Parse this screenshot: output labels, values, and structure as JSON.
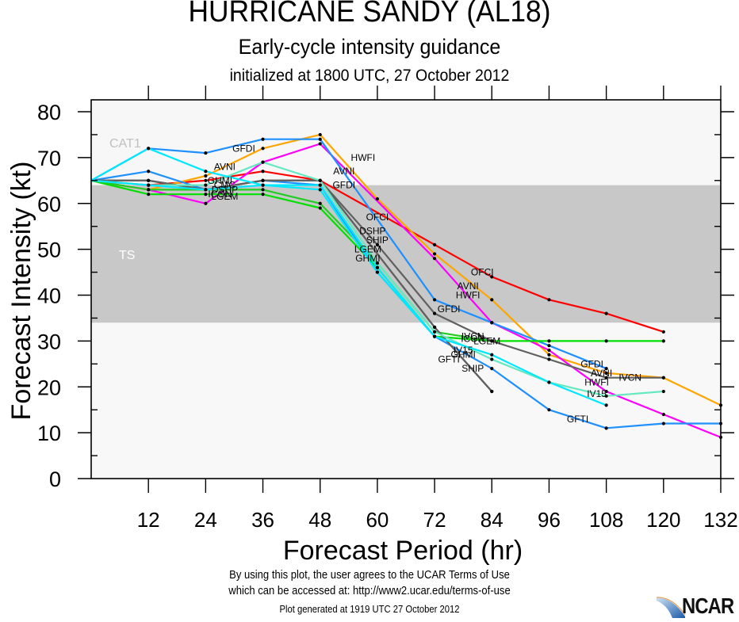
{
  "header": {
    "title": "HURRICANE SANDY (AL18)",
    "subtitle": "Early-cycle intensity guidance",
    "initialized": "initialized at 1800 UTC, 27 October 2012"
  },
  "footer": {
    "terms_line1": "By using this plot, the user agrees to the UCAR Terms of Use",
    "terms_line2": "which can be accessed at: http://www2.ucar.edu/terms-of-use",
    "generated": "Plot generated at 1919 UTC   27 October 2012",
    "logo_text": "NCAR"
  },
  "chart_data": {
    "type": "line",
    "title": "HURRICANE SANDY (AL18)",
    "xlabel": "Forecast Period (hr)",
    "ylabel": "Forecast Intensity (kt)",
    "xlim": [
      0,
      132
    ],
    "ylim": [
      0,
      80
    ],
    "xticks": [
      12,
      24,
      36,
      48,
      60,
      72,
      84,
      96,
      108,
      120,
      132
    ],
    "yticks": [
      0,
      10,
      20,
      30,
      40,
      50,
      60,
      70,
      80
    ],
    "bands": [
      {
        "label": "TS",
        "from": 34,
        "to": 64,
        "color": "#c8c8c8"
      },
      {
        "label": "CAT1",
        "from": 64,
        "to": 83,
        "color": "#f7f7f7"
      }
    ],
    "series": [
      {
        "name": "OFCI",
        "color": "#ff0000",
        "x": [
          0,
          12,
          24,
          36,
          48,
          72,
          84,
          96,
          108,
          120
        ],
        "y": [
          65,
          64,
          65,
          67,
          65,
          51,
          44,
          39,
          36,
          32
        ],
        "labels": [
          {
            "x": 60,
            "y": 57
          },
          {
            "x": 82,
            "y": 45
          }
        ]
      },
      {
        "name": "AVNI",
        "color": "#ffa500",
        "x": [
          0,
          12,
          24,
          36,
          48,
          60,
          72,
          84,
          96,
          108,
          120,
          132
        ],
        "y": [
          65,
          63,
          66,
          72,
          75,
          61,
          49,
          39,
          27,
          23,
          22,
          16
        ],
        "labels": [
          {
            "x": 28,
            "y": 68
          },
          {
            "x": 53,
            "y": 67
          },
          {
            "x": 79,
            "y": 42
          },
          {
            "x": 107,
            "y": 23
          }
        ]
      },
      {
        "name": "HWFI",
        "color": "#ff00ff",
        "x": [
          0,
          12,
          24,
          36,
          48,
          72,
          84,
          96,
          108,
          120,
          132
        ],
        "y": [
          65,
          63,
          60,
          69,
          73,
          48,
          34,
          28,
          19,
          14,
          9
        ],
        "labels": [
          {
            "x": 57,
            "y": 70
          },
          {
            "x": 79,
            "y": 40
          },
          {
            "x": 106,
            "y": 21
          }
        ]
      },
      {
        "name": "GFDI",
        "color": "#1e90ff",
        "x": [
          0,
          12,
          24,
          36,
          48,
          72,
          84,
          96,
          108
        ],
        "y": [
          65,
          72,
          71,
          74,
          74,
          39,
          34,
          29,
          24
        ],
        "labels": [
          {
            "x": 32,
            "y": 72
          },
          {
            "x": 53,
            "y": 64
          },
          {
            "x": 75,
            "y": 37
          },
          {
            "x": 105,
            "y": 25
          }
        ]
      },
      {
        "name": "GFTI",
        "color": "#1e90ff",
        "x": [
          0,
          12,
          24,
          36,
          48,
          60,
          72,
          84,
          96,
          108,
          120,
          132
        ],
        "y": [
          65,
          67,
          63,
          65,
          64,
          45,
          31,
          24,
          15,
          11,
          12,
          12
        ],
        "labels": [
          {
            "x": 75,
            "y": 26
          },
          {
            "x": 102,
            "y": 13
          }
        ]
      },
      {
        "name": "LGEM",
        "color": "#00e000",
        "x": [
          0,
          12,
          24,
          36,
          48,
          60,
          72,
          84,
          96,
          108,
          120
        ],
        "y": [
          65,
          62,
          62,
          62,
          59,
          46,
          31,
          30,
          30,
          30,
          30
        ],
        "labels": [
          {
            "x": 28,
            "y": 61.5
          },
          {
            "x": 58,
            "y": 50
          },
          {
            "x": 83,
            "y": 30
          }
        ]
      },
      {
        "name": "ICON",
        "color": "#22cc22",
        "x": [
          0,
          12,
          24,
          36,
          48,
          60,
          72,
          84
        ],
        "y": [
          65,
          63,
          63,
          63,
          60,
          47,
          32,
          30
        ],
        "labels": [
          {
            "x": 27,
            "y": 62
          },
          {
            "x": 80,
            "y": 30.5
          }
        ]
      },
      {
        "name": "DSHP",
        "color": "#606060",
        "x": [
          0,
          12,
          24,
          36,
          48,
          72,
          84
        ],
        "y": [
          65,
          65,
          63,
          65,
          65,
          33,
          19
        ],
        "labels": [
          {
            "x": 28,
            "y": 63
          },
          {
            "x": 59,
            "y": 54
          }
        ]
      },
      {
        "name": "SHIP",
        "color": "#606060",
        "x": [
          0,
          12,
          24,
          36,
          48,
          72,
          84
        ],
        "y": [
          65,
          65,
          63,
          65,
          65,
          33,
          19
        ],
        "labels": [
          {
            "x": 60,
            "y": 52
          },
          {
            "x": 80,
            "y": 24
          }
        ]
      },
      {
        "name": "IVCN",
        "color": "#606060",
        "x": [
          0,
          12,
          24,
          36,
          48,
          60,
          72,
          84,
          96,
          108,
          120
        ],
        "y": [
          65,
          65,
          63,
          65,
          65,
          51,
          36,
          30,
          26,
          22,
          22
        ],
        "labels": [
          {
            "x": 80,
            "y": 31
          },
          {
            "x": 113,
            "y": 22
          }
        ]
      },
      {
        "name": "IV15",
        "color": "#66e8c0",
        "x": [
          0,
          12,
          24,
          36,
          48,
          60,
          72,
          84,
          96,
          108,
          120
        ],
        "y": [
          65,
          64,
          64,
          69,
          65,
          47,
          32,
          26,
          21,
          18,
          19
        ],
        "labels": [
          {
            "x": 78,
            "y": 28
          },
          {
            "x": 106,
            "y": 18.5
          }
        ]
      },
      {
        "name": "GHMI",
        "color": "#00e8ff",
        "x": [
          0,
          12,
          24,
          36,
          48,
          60,
          72,
          84,
          96,
          108
        ],
        "y": [
          65,
          72,
          67,
          64,
          64,
          46,
          31,
          27,
          21,
          16
        ],
        "labels": [
          {
            "x": 27,
            "y": 65
          },
          {
            "x": 58,
            "y": 48
          },
          {
            "x": 78,
            "y": 27
          }
        ]
      },
      {
        "name": "CMC",
        "color": "#00e8ff",
        "x": [
          0,
          12,
          24,
          36,
          48,
          60,
          72
        ],
        "y": [
          65,
          64,
          63,
          64,
          63,
          45,
          31
        ],
        "labels": [
          {
            "x": 28,
            "y": 64
          }
        ]
      }
    ]
  }
}
